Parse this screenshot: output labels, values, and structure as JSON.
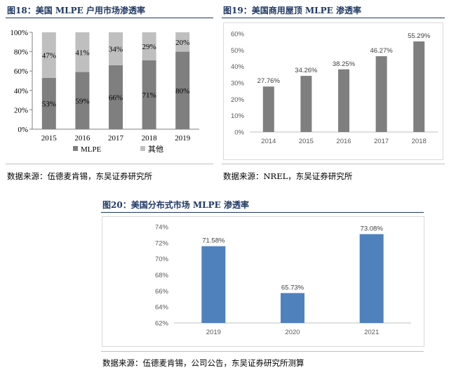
{
  "figures": {
    "fig18": {
      "title": "图18：美国 MLPE 户用市场渗透率",
      "source": "数据来源：伍德麦肯锡，东吴证券研究所"
    },
    "fig19": {
      "title": "图19：美国商用屋顶 MLPE 渗透率",
      "source": "数据来源：NREL，东吴证券研究所"
    },
    "fig20": {
      "title": "图20：美国分布式市场 MLPE 渗透率",
      "source": "数据来源：伍德麦肯锡，公司公告，东吴证券研究所测算"
    }
  },
  "chart_data": [
    {
      "type": "bar",
      "stacked": true,
      "categories": [
        "2015",
        "2016",
        "2017",
        "2018",
        "2019"
      ],
      "series": [
        {
          "name": "MLPE",
          "values": [
            53,
            59,
            66,
            71,
            80
          ],
          "labels": [
            "53%",
            "59%",
            "66%",
            "71%",
            "80%"
          ],
          "color": "#7f7f7f"
        },
        {
          "name": "其他",
          "values": [
            47,
            41,
            34,
            29,
            20
          ],
          "labels": [
            "47%",
            "41%",
            "34%",
            "29%",
            "20%"
          ],
          "color": "#bfbfbf"
        }
      ],
      "ylim": [
        0,
        100
      ],
      "yticks": [
        "0%",
        "20%",
        "40%",
        "60%",
        "80%",
        "100%"
      ],
      "legend": "bottom",
      "grid": false
    },
    {
      "type": "bar",
      "categories": [
        "2014",
        "2015",
        "2016",
        "2017",
        "2018"
      ],
      "values": [
        27.76,
        34.26,
        38.25,
        46.27,
        55.29
      ],
      "labels": [
        "27.76%",
        "34.26%",
        "38.25%",
        "46.27%",
        "55.29%"
      ],
      "ylim": [
        0,
        60
      ],
      "yticks": [
        "0%",
        "10%",
        "20%",
        "30%",
        "40%",
        "50%",
        "60%"
      ],
      "color": "#7f7f7f",
      "grid": false
    },
    {
      "type": "bar",
      "categories": [
        "2019",
        "2020",
        "2021"
      ],
      "values": [
        71.58,
        65.73,
        73.08
      ],
      "labels": [
        "71.58%",
        "65.73%",
        "73.08%"
      ],
      "ylim": [
        62,
        74
      ],
      "yticks": [
        "62%",
        "64%",
        "66%",
        "68%",
        "70%",
        "72%",
        "74%"
      ],
      "color": "#4f81bd",
      "grid": false
    }
  ]
}
